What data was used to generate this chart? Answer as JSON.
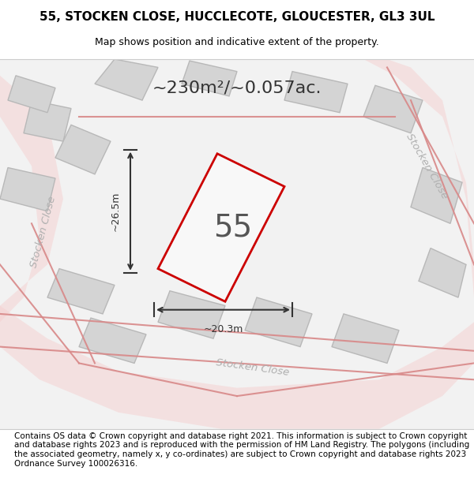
{
  "title_line1": "55, STOCKEN CLOSE, HUCCLECOTE, GLOUCESTER, GL3 3UL",
  "title_line2": "Map shows position and indicative extent of the property.",
  "area_text": "~230m²/~0.057ac.",
  "plot_number": "55",
  "dim_width": "~20.3m",
  "dim_height": "~26.5m",
  "street_label_left": "Stocken Close",
  "street_label_bottom": "Stocken Close",
  "footer_text": "Contains OS data © Crown copyright and database right 2021. This information is subject to Crown copyright and database rights 2023 and is reproduced with the permission of HM Land Registry. The polygons (including the associated geometry, namely x, y co-ordinates) are subject to Crown copyright and database rights 2023 Ordnance Survey 100026316.",
  "bg_color": "#f0f0f0",
  "map_bg": "#f5f5f5",
  "road_color": "#e8e8e8",
  "building_fill": "#d8d8d8",
  "building_edge": "#c8c8c8",
  "plot_edge": "#cc0000",
  "plot_fill": "#f0f0f0",
  "street_color": "#d0a0a0",
  "title_fontsize": 11,
  "subtitle_fontsize": 9,
  "area_fontsize": 16,
  "plot_num_fontsize": 28,
  "footer_fontsize": 7.5
}
